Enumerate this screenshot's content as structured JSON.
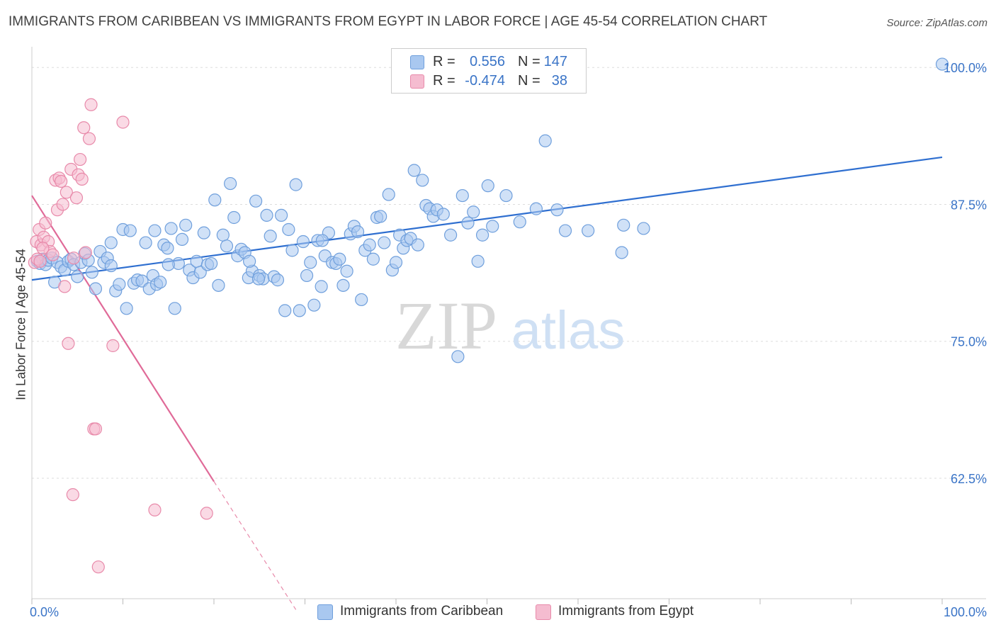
{
  "title": "IMMIGRANTS FROM CARIBBEAN VS IMMIGRANTS FROM EGYPT IN LABOR FORCE | AGE 45-54 CORRELATION CHART",
  "source": "Source: ZipAtlas.com",
  "watermark": {
    "zip": "ZIP",
    "atlas": "atlas"
  },
  "legend": {
    "r_label": "R =",
    "n_label": "N =",
    "rows": [
      {
        "r": "0.556",
        "n": "147",
        "color": "#a9c8f0",
        "border": "#6f9fdc"
      },
      {
        "r": "-0.474",
        "n": "38",
        "color": "#f5bcd0",
        "border": "#e88aaa"
      }
    ]
  },
  "bottom_legend": [
    {
      "label": "Immigrants from Caribbean",
      "color": "#a9c8f0",
      "border": "#6f9fdc"
    },
    {
      "label": "Immigrants from Egypt",
      "color": "#f5bcd0",
      "border": "#e88aaa"
    }
  ],
  "chart_data": {
    "type": "scatter",
    "title": "IMMIGRANTS FROM CARIBBEAN VS IMMIGRANTS FROM EGYPT IN LABOR FORCE | AGE 45-54 CORRELATION CHART",
    "xlabel": "",
    "ylabel": "In Labor Force | Age 45-54",
    "xlim": [
      0,
      100
    ],
    "ylim": [
      51.5,
      101.5
    ],
    "x_tick_labels": [
      "0.0%",
      "100.0%"
    ],
    "y_ticks": [
      100.0,
      87.5,
      75.0,
      62.5
    ],
    "y_tick_labels": [
      "100.0%",
      "87.5%",
      "75.0%",
      "62.5%"
    ],
    "grid": true,
    "legend_position": "top-center",
    "series": [
      {
        "name": "Immigrants from Caribbean",
        "color": "#6f9fdc",
        "fill": "#a9c8f0",
        "trend": {
          "x": [
            0,
            100
          ],
          "y": [
            80.6,
            91.8
          ]
        },
        "points": [
          [
            0.6,
            82.3
          ],
          [
            0.9,
            82.1
          ],
          [
            1.2,
            82.5
          ],
          [
            1.5,
            82.0
          ],
          [
            1.8,
            82.4
          ],
          [
            2.2,
            82.6
          ],
          [
            2.5,
            80.4
          ],
          [
            2.8,
            82.2
          ],
          [
            3.2,
            81.8
          ],
          [
            3.6,
            81.5
          ],
          [
            4.0,
            82.3
          ],
          [
            4.3,
            82.5
          ],
          [
            4.6,
            82.0
          ],
          [
            5.0,
            80.9
          ],
          [
            5.4,
            82.2
          ],
          [
            5.8,
            83.0
          ],
          [
            6.2,
            82.4
          ],
          [
            6.6,
            81.3
          ],
          [
            7.0,
            79.8
          ],
          [
            7.5,
            83.2
          ],
          [
            7.9,
            82.2
          ],
          [
            8.3,
            82.6
          ],
          [
            8.7,
            81.9
          ],
          [
            9.2,
            79.6
          ],
          [
            9.6,
            80.2
          ],
          [
            10.0,
            85.2
          ],
          [
            10.4,
            78.0
          ],
          [
            10.8,
            85.1
          ],
          [
            11.2,
            80.3
          ],
          [
            11.6,
            80.6
          ],
          [
            12.1,
            80.5
          ],
          [
            12.5,
            84.0
          ],
          [
            12.9,
            79.8
          ],
          [
            13.3,
            81.0
          ],
          [
            13.7,
            80.2
          ],
          [
            14.1,
            80.4
          ],
          [
            14.5,
            83.8
          ],
          [
            14.9,
            83.5
          ],
          [
            15.3,
            85.3
          ],
          [
            15.7,
            78.0
          ],
          [
            16.1,
            82.1
          ],
          [
            16.5,
            84.3
          ],
          [
            16.9,
            85.6
          ],
          [
            17.3,
            81.5
          ],
          [
            17.7,
            80.8
          ],
          [
            18.1,
            82.3
          ],
          [
            18.5,
            81.3
          ],
          [
            18.9,
            84.9
          ],
          [
            19.3,
            82.0
          ],
          [
            19.7,
            82.1
          ],
          [
            20.1,
            87.9
          ],
          [
            20.5,
            80.1
          ],
          [
            21.0,
            84.7
          ],
          [
            21.4,
            83.7
          ],
          [
            21.8,
            89.4
          ],
          [
            22.2,
            86.3
          ],
          [
            22.6,
            82.8
          ],
          [
            23.0,
            83.4
          ],
          [
            23.4,
            83.1
          ],
          [
            23.8,
            80.8
          ],
          [
            24.2,
            81.4
          ],
          [
            24.6,
            87.8
          ],
          [
            25.0,
            81.0
          ],
          [
            25.4,
            80.7
          ],
          [
            25.8,
            86.5
          ],
          [
            26.2,
            84.6
          ],
          [
            26.6,
            80.9
          ],
          [
            27.0,
            80.6
          ],
          [
            27.4,
            86.5
          ],
          [
            27.8,
            77.8
          ],
          [
            28.2,
            85.2
          ],
          [
            28.6,
            83.3
          ],
          [
            29.0,
            89.3
          ],
          [
            29.4,
            77.8
          ],
          [
            29.8,
            84.1
          ],
          [
            30.2,
            81.0
          ],
          [
            30.6,
            82.2
          ],
          [
            31.0,
            78.3
          ],
          [
            31.4,
            84.2
          ],
          [
            31.8,
            80.0
          ],
          [
            32.2,
            82.8
          ],
          [
            32.6,
            84.9
          ],
          [
            33.0,
            82.2
          ],
          [
            33.4,
            82.1
          ],
          [
            33.8,
            82.5
          ],
          [
            34.2,
            80.1
          ],
          [
            34.6,
            81.4
          ],
          [
            35.0,
            84.8
          ],
          [
            35.4,
            85.5
          ],
          [
            35.8,
            85.0
          ],
          [
            36.2,
            78.8
          ],
          [
            36.6,
            83.3
          ],
          [
            37.1,
            83.8
          ],
          [
            37.5,
            82.5
          ],
          [
            37.9,
            86.3
          ],
          [
            38.3,
            86.4
          ],
          [
            38.7,
            84.0
          ],
          [
            39.2,
            88.4
          ],
          [
            39.6,
            81.5
          ],
          [
            40.0,
            82.2
          ],
          [
            40.4,
            84.7
          ],
          [
            40.8,
            83.5
          ],
          [
            41.2,
            84.2
          ],
          [
            41.6,
            84.4
          ],
          [
            42.0,
            90.6
          ],
          [
            42.4,
            83.8
          ],
          [
            42.9,
            89.7
          ],
          [
            43.3,
            87.4
          ],
          [
            43.7,
            87.1
          ],
          [
            44.1,
            86.4
          ],
          [
            44.5,
            87.0
          ],
          [
            45.2,
            86.6
          ],
          [
            46.0,
            84.7
          ],
          [
            46.8,
            73.6
          ],
          [
            47.3,
            88.3
          ],
          [
            47.9,
            85.8
          ],
          [
            48.5,
            86.8
          ],
          [
            49.0,
            82.3
          ],
          [
            49.5,
            84.7
          ],
          [
            50.1,
            89.2
          ],
          [
            50.6,
            85.5
          ],
          [
            52.1,
            88.3
          ],
          [
            53.6,
            85.9
          ],
          [
            55.4,
            87.1
          ],
          [
            56.4,
            93.3
          ],
          [
            57.7,
            87.0
          ],
          [
            58.6,
            85.1
          ],
          [
            61.1,
            85.1
          ],
          [
            64.8,
            83.1
          ],
          [
            65.0,
            85.6
          ],
          [
            67.2,
            85.3
          ],
          [
            100.0,
            100.3
          ],
          [
            23.9,
            82.3
          ],
          [
            15.0,
            82.0
          ],
          [
            8.7,
            84.0
          ],
          [
            24.9,
            80.7
          ],
          [
            31.9,
            84.2
          ],
          [
            13.5,
            85.1
          ]
        ]
      },
      {
        "name": "Immigrants from Egypt",
        "color": "#e88aaa",
        "fill": "#f5bcd0",
        "trend": {
          "x": [
            0,
            20
          ],
          "y": [
            88.3,
            62.2
          ]
        },
        "trend_dashed": {
          "x": [
            20,
            29
          ],
          "y": [
            62.2,
            50.5
          ]
        },
        "points": [
          [
            0.3,
            82.2
          ],
          [
            0.5,
            84.1
          ],
          [
            0.8,
            85.2
          ],
          [
            1.0,
            83.8
          ],
          [
            1.3,
            84.5
          ],
          [
            1.5,
            85.8
          ],
          [
            1.8,
            84.1
          ],
          [
            2.0,
            83.2
          ],
          [
            2.3,
            82.9
          ],
          [
            2.6,
            89.7
          ],
          [
            2.8,
            87.0
          ],
          [
            3.0,
            89.9
          ],
          [
            3.2,
            89.6
          ],
          [
            3.4,
            87.5
          ],
          [
            3.6,
            80.0
          ],
          [
            3.8,
            88.6
          ],
          [
            4.0,
            74.8
          ],
          [
            4.3,
            90.7
          ],
          [
            4.6,
            82.6
          ],
          [
            4.9,
            88.1
          ],
          [
            5.1,
            90.2
          ],
          [
            5.3,
            91.6
          ],
          [
            5.5,
            89.8
          ],
          [
            5.7,
            94.5
          ],
          [
            5.9,
            83.1
          ],
          [
            6.3,
            93.5
          ],
          [
            6.5,
            96.6
          ],
          [
            6.8,
            67.0
          ],
          [
            7.0,
            67.0
          ],
          [
            7.3,
            54.4
          ],
          [
            8.9,
            74.6
          ],
          [
            10.0,
            95.0
          ],
          [
            4.5,
            61.0
          ],
          [
            13.5,
            59.6
          ],
          [
            19.2,
            59.3
          ],
          [
            0.6,
            82.5
          ],
          [
            0.9,
            82.3
          ],
          [
            1.2,
            83.5
          ]
        ]
      }
    ]
  }
}
